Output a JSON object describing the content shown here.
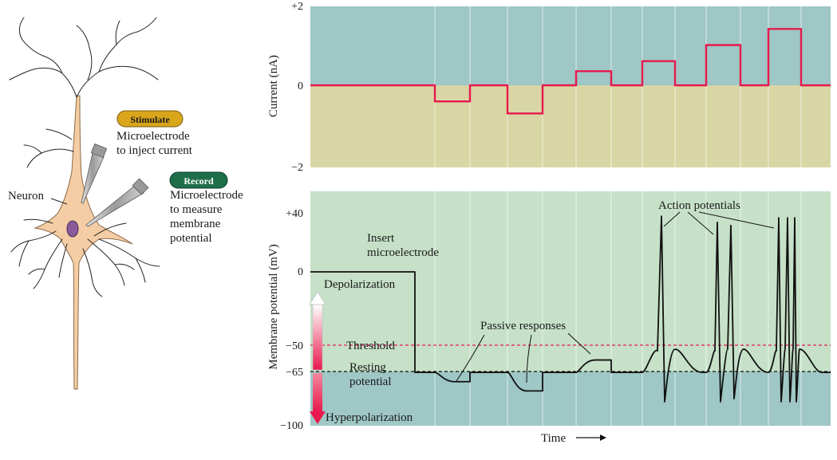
{
  "neuron_panel": {
    "neuron_label": "Neuron",
    "stimulate": {
      "label": "Stimulate",
      "desc": [
        "Microelectrode",
        "to inject current"
      ],
      "color": "#d9a51b"
    },
    "record": {
      "label": "Record",
      "desc": [
        "Microelectrode",
        "to measure",
        "membrane",
        "potential"
      ],
      "color": "#1f6e4a"
    }
  },
  "current_panel": {
    "ylabel": "Current (nA)",
    "ticks": [
      "+2",
      "0",
      "−2"
    ],
    "colors": {
      "top": "#9ec7c5",
      "bottom": "#d8d6a4",
      "trace": "#e8194d"
    }
  },
  "potential_panel": {
    "ylabel": "Membrane potential (mV)",
    "ticks": [
      "+40",
      "0",
      "−50",
      "−65",
      "−100"
    ],
    "xlabel": "Time",
    "colors": {
      "top": "#c6e1c8",
      "bottom": "#9ec7c5",
      "threshold": "#e8194d",
      "trace": "#111111"
    },
    "annotations": {
      "insert": [
        "Insert",
        "microelectrode"
      ],
      "depolarization": "Depolarization",
      "hyperpolarization": "Hyperpolarization",
      "threshold": "Threshold",
      "resting": [
        "Resting",
        "potential"
      ],
      "passive": "Passive responses",
      "action": "Action potentials"
    }
  },
  "chart_data": [
    {
      "type": "line",
      "ylabel": "Current (nA)",
      "ylim": [
        -2,
        2
      ],
      "series": [
        {
          "values": [
            0,
            -0.4,
            0,
            -0.7,
            0,
            0.35,
            0,
            0.6,
            0,
            1.0,
            0,
            1.4,
            0
          ]
        }
      ]
    },
    {
      "type": "line",
      "ylabel": "Membrane potential (mV)",
      "xlabel": "Time",
      "ylim": [
        -100,
        40
      ],
      "reference_lines": [
        {
          "label": "Threshold",
          "y": -50
        },
        {
          "label": "Resting potential",
          "y": -65
        }
      ],
      "series": [
        {
          "values": [
            0,
            -65,
            -71,
            -65,
            -77,
            -65,
            -57,
            -65,
            36,
            -65,
            32,
            30,
            -65,
            35,
            35,
            35,
            35,
            -65
          ]
        }
      ]
    }
  ]
}
